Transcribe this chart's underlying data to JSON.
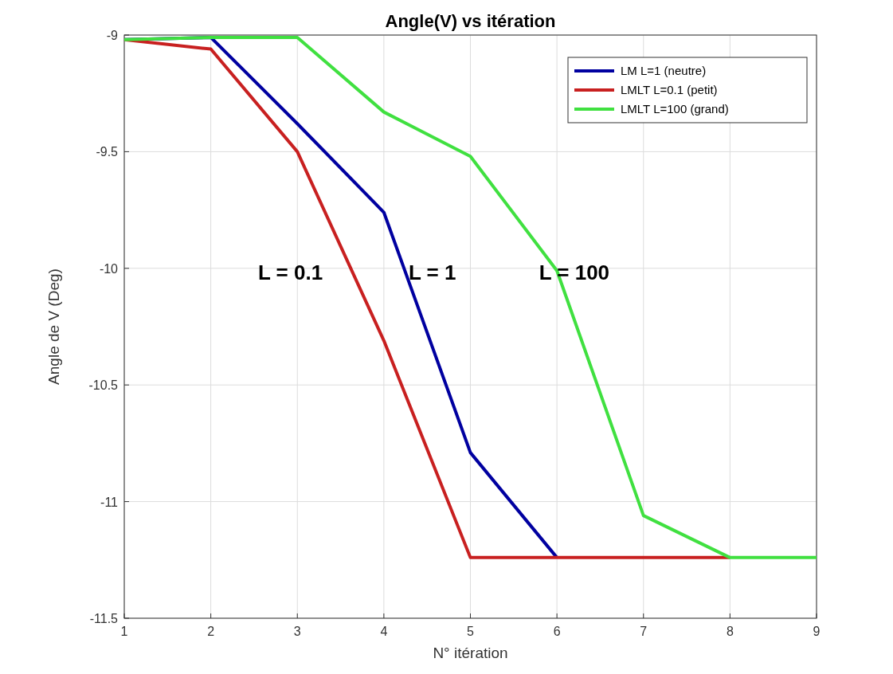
{
  "chart_data": {
    "type": "line",
    "title": "Angle(V) vs itération",
    "xlabel": "N° itération",
    "ylabel": "Angle de V (Deg)",
    "xlim": [
      1,
      9
    ],
    "xticks": [
      1,
      2,
      3,
      4,
      5,
      6,
      7,
      8,
      9
    ],
    "ylim": [
      -11.5,
      -9
    ],
    "yticks": [
      -11.5,
      -11,
      -10.5,
      -10,
      -9.5,
      -9
    ],
    "grid": true,
    "legend": "top right",
    "line_style": "solid",
    "marker": "none",
    "annotations": [
      "L = 0.1",
      "L = 1",
      "L = 100"
    ],
    "series": [
      {
        "name": "LM L=1 (neutre)",
        "color": "#0000a0",
        "x": [
          1,
          2,
          3,
          4,
          5,
          6
        ],
        "values": [
          -9.02,
          -9.01,
          -9.38,
          -9.76,
          -10.79,
          -11.24
        ]
      },
      {
        "name": "LMLT L=0.1 (petit)",
        "color": "#c82020",
        "x": [
          1,
          2,
          3,
          4,
          5,
          6,
          7,
          8
        ],
        "values": [
          -9.02,
          -9.06,
          -9.5,
          -10.31,
          -11.24,
          -11.24,
          -11.24,
          -11.24
        ]
      },
      {
        "name": "LMLT L=100 (grand)",
        "color": "#40e040",
        "x": [
          1,
          2,
          3,
          4,
          5,
          6,
          7,
          8,
          9
        ],
        "values": [
          -9.02,
          -9.01,
          -9.01,
          -9.33,
          -9.52,
          -10.01,
          -11.06,
          -11.24,
          -11.24
        ]
      }
    ]
  }
}
